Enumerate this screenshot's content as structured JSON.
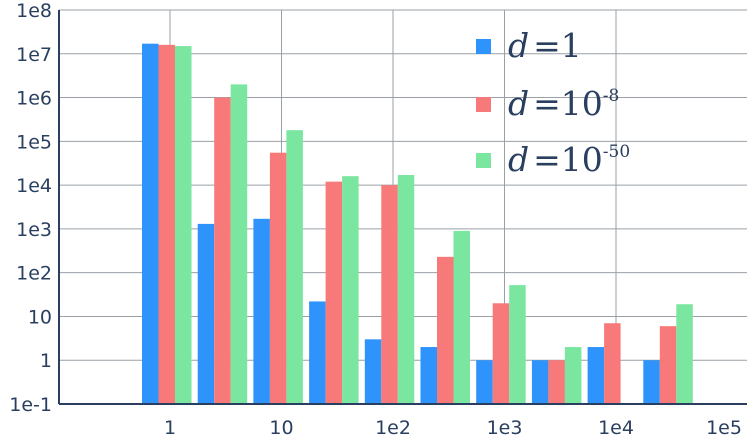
{
  "chart_data": {
    "type": "bar",
    "title": "",
    "xlabel": "",
    "ylabel": "",
    "y_scale": "log",
    "y_ticks": [
      "1e-1",
      "1",
      "10",
      "1e2",
      "1e3",
      "1e4",
      "1e5",
      "1e6",
      "1e7",
      "1e8"
    ],
    "x_ticks": [
      "1",
      "10",
      "1e2",
      "1e3",
      "1e4",
      "1e5"
    ],
    "grid": true,
    "legend_position": "top-right",
    "series": [
      {
        "name": "d =1",
        "legend_base": "d =1",
        "legend_exp": "",
        "color": "#2e93fb",
        "values": [
          17000000,
          1300,
          1700,
          22,
          3,
          2,
          1,
          1,
          2,
          1
        ]
      },
      {
        "name": "d =10-8",
        "legend_base": "d =10",
        "legend_exp": "-8",
        "color": "#f7797a",
        "values": [
          16000000,
          1000000,
          55000,
          12000,
          10000,
          230,
          20,
          1,
          7,
          6
        ]
      },
      {
        "name": "d =10-50",
        "legend_base": "d =10",
        "legend_exp": "-50",
        "color": "#7be6a0",
        "values": [
          15000000,
          2000000,
          180000,
          16000,
          17000,
          900,
          52,
          2,
          null,
          19
        ]
      }
    ]
  }
}
